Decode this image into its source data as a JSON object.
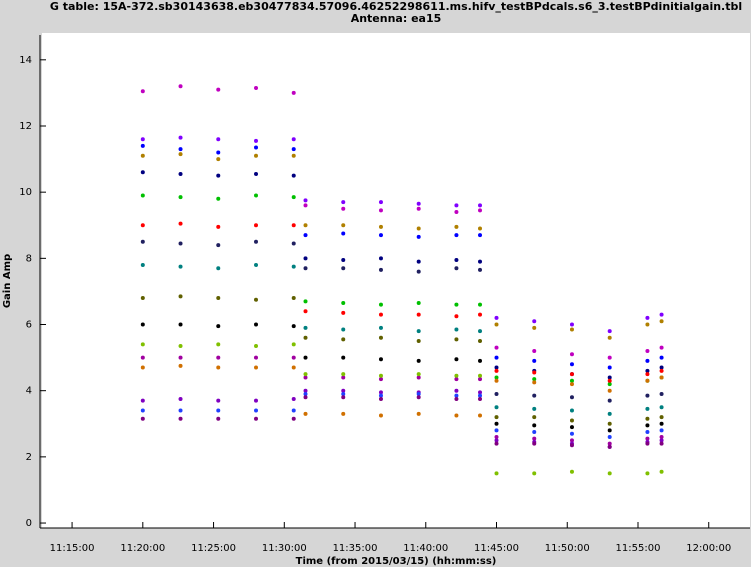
{
  "chart_data": {
    "type": "scatter",
    "title": "G table: 15A-372.sb30143638.eb30477834.57096.46252298611.ms.hifv_testBPdcals.s6_3.testBPdinitialgain.tbl",
    "subtitle": "Antenna: ea15",
    "x_label": "Time (from 2015/03/15) (hh:mm:ss)",
    "y_label": "Gain Amp",
    "xlim": [
      "11:12:44",
      "12:02:55"
    ],
    "xticks": [
      "11:15:00",
      "11:20:00",
      "11:25:00",
      "11:30:00",
      "11:35:00",
      "11:40:00",
      "11:45:00",
      "11:50:00",
      "11:55:00",
      "12:00:00"
    ],
    "ylim": [
      -0.15,
      14.75
    ],
    "yticks": [
      0,
      2,
      4,
      6,
      8,
      10,
      12,
      14
    ],
    "x": [
      "11:20:00",
      "11:22:40",
      "11:25:20",
      "11:28:00",
      "11:30:40",
      "11:31:30",
      "11:34:10",
      "11:36:50",
      "11:39:30",
      "11:42:10",
      "11:43:50",
      "11:45:00",
      "11:47:40",
      "11:50:20",
      "11:53:00",
      "11:55:40",
      "11:56:40"
    ],
    "series": [
      {
        "color": "#c000c0",
        "values": [
          13.05,
          13.2,
          13.1,
          13.15,
          13.0,
          9.6,
          9.5,
          9.45,
          9.5,
          9.4,
          9.45,
          5.3,
          5.2,
          5.1,
          5.0,
          5.2,
          5.3
        ]
      },
      {
        "color": "#8000ff",
        "values": [
          11.6,
          11.65,
          11.6,
          11.55,
          11.6,
          9.75,
          9.7,
          9.7,
          9.65,
          9.6,
          9.6,
          6.2,
          6.1,
          6.0,
          5.8,
          6.2,
          6.3
        ]
      },
      {
        "color": "#0000ff",
        "values": [
          11.4,
          11.3,
          11.2,
          11.35,
          11.3,
          8.7,
          8.75,
          8.7,
          8.65,
          8.7,
          8.7,
          5.0,
          4.9,
          4.8,
          4.7,
          4.9,
          5.0
        ]
      },
      {
        "color": "#b08000",
        "values": [
          11.1,
          11.15,
          11.0,
          11.1,
          11.1,
          9.0,
          9.0,
          8.95,
          8.9,
          8.95,
          8.9,
          6.0,
          5.9,
          5.85,
          5.6,
          6.0,
          6.1
        ]
      },
      {
        "color": "#000080",
        "values": [
          10.6,
          10.55,
          10.5,
          10.55,
          10.5,
          8.0,
          7.95,
          8.0,
          7.9,
          7.95,
          7.9,
          4.7,
          4.6,
          4.5,
          4.4,
          4.6,
          4.7
        ]
      },
      {
        "color": "#00c000",
        "values": [
          9.9,
          9.85,
          9.8,
          9.9,
          9.85,
          6.7,
          6.65,
          6.6,
          6.65,
          6.6,
          6.6,
          4.4,
          4.35,
          4.3,
          4.2,
          4.3,
          4.4
        ]
      },
      {
        "color": "#ff0000",
        "values": [
          9.0,
          9.05,
          8.95,
          9.0,
          9.0,
          6.4,
          6.35,
          6.3,
          6.3,
          6.25,
          6.3,
          4.6,
          4.55,
          4.5,
          4.3,
          4.5,
          4.6
        ]
      },
      {
        "color": "#202060",
        "values": [
          8.5,
          8.45,
          8.4,
          8.5,
          8.45,
          7.7,
          7.7,
          7.65,
          7.6,
          7.7,
          7.65,
          3.9,
          3.85,
          3.8,
          3.7,
          3.85,
          3.9
        ]
      },
      {
        "color": "#008080",
        "values": [
          7.8,
          7.75,
          7.7,
          7.8,
          7.75,
          5.9,
          5.85,
          5.9,
          5.8,
          5.85,
          5.8,
          3.5,
          3.45,
          3.4,
          3.3,
          3.45,
          3.5
        ]
      },
      {
        "color": "#606000",
        "values": [
          6.8,
          6.85,
          6.8,
          6.75,
          6.8,
          5.6,
          5.55,
          5.6,
          5.5,
          5.55,
          5.5,
          3.2,
          3.2,
          3.1,
          3.0,
          3.15,
          3.2
        ]
      },
      {
        "color": "#000000",
        "values": [
          6.0,
          6.0,
          5.95,
          6.0,
          5.95,
          5.0,
          5.0,
          4.95,
          4.9,
          4.95,
          4.9,
          3.0,
          2.95,
          2.9,
          2.8,
          2.95,
          3.0
        ]
      },
      {
        "color": "#a000a0",
        "values": [
          5.0,
          5.0,
          5.0,
          5.0,
          5.0,
          4.4,
          4.4,
          4.35,
          4.4,
          4.35,
          4.35,
          2.6,
          2.55,
          2.5,
          2.4,
          2.55,
          2.6
        ]
      },
      {
        "color": "#8000c0",
        "values": [
          3.7,
          3.75,
          3.7,
          3.7,
          3.75,
          4.0,
          4.0,
          3.95,
          3.95,
          4.0,
          3.95,
          2.5,
          2.45,
          2.4,
          2.3,
          2.45,
          2.5
        ]
      },
      {
        "color": "#2040ff",
        "values": [
          3.4,
          3.4,
          3.4,
          3.4,
          3.4,
          3.9,
          3.9,
          3.85,
          3.9,
          3.85,
          3.85,
          2.8,
          2.75,
          2.7,
          2.6,
          2.75,
          2.8
        ]
      },
      {
        "color": "#800080",
        "values": [
          3.15,
          3.15,
          3.15,
          3.15,
          3.15,
          3.8,
          3.8,
          3.75,
          3.8,
          3.75,
          3.75,
          2.4,
          2.4,
          2.35,
          2.3,
          2.4,
          2.4
        ]
      },
      {
        "color": "#d07000",
        "values": [
          4.7,
          4.75,
          4.7,
          4.7,
          4.7,
          3.3,
          3.3,
          3.25,
          3.3,
          3.25,
          3.25,
          4.3,
          4.25,
          4.2,
          4.0,
          4.3,
          4.4
        ]
      },
      {
        "color": "#80c000",
        "values": [
          5.4,
          5.35,
          5.4,
          5.35,
          5.4,
          4.5,
          4.5,
          4.45,
          4.5,
          4.45,
          4.45,
          1.5,
          1.5,
          1.55,
          1.5,
          1.5,
          1.55
        ]
      }
    ]
  }
}
